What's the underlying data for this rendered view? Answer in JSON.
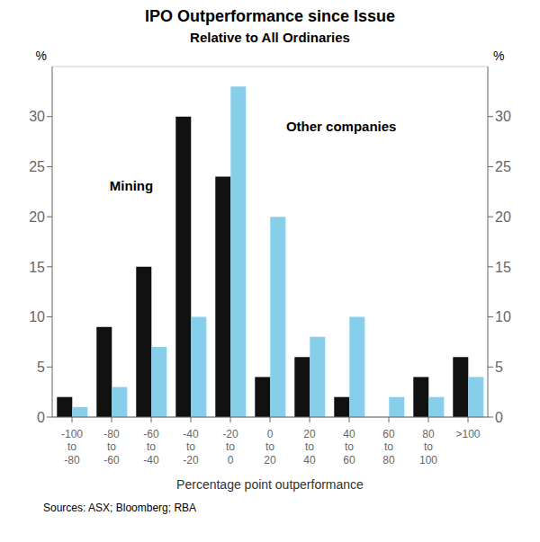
{
  "chart_data": {
    "type": "bar",
    "title": "IPO Outperformance since Issue",
    "subtitle": "Relative to All Ordinaries",
    "x_label": "Percentage point outperformance",
    "y_label": "%",
    "y2_label": "%",
    "source": "Sources: ASX; Bloomberg; RBA",
    "categories": [
      "-100\nto\n-80",
      "-80\nto\n-60",
      "-60\nto\n-40",
      "-40\nto\n-20",
      "-20\nto\n0",
      "0\nto\n20",
      "20\nto\n40",
      "40\nto\n60",
      "60\nto\n80",
      "80\nto\n100",
      ">100"
    ],
    "series": [
      {
        "name": "Mining",
        "color": "#111111",
        "values": [
          2,
          9,
          15,
          30,
          24,
          4,
          6,
          2,
          0,
          4,
          6
        ]
      },
      {
        "name": "Other companies",
        "color": "#87CEEB",
        "values": [
          1,
          3,
          7,
          10,
          33,
          20,
          8,
          10,
          2,
          2,
          4
        ]
      }
    ],
    "ylim": [
      0,
      35
    ],
    "yticks": [
      0,
      5,
      10,
      15,
      20,
      25,
      30
    ],
    "y2lim": [
      0,
      35
    ],
    "y2ticks": [
      0,
      5,
      10,
      15,
      20,
      25,
      30
    ],
    "grid": true
  }
}
